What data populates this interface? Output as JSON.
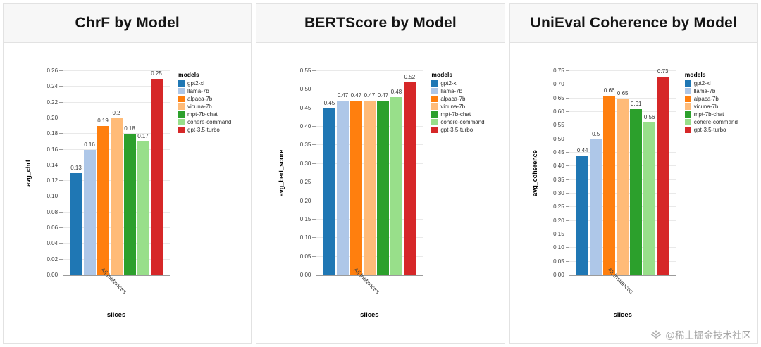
{
  "watermark": {
    "icon": "juejin-logo",
    "text": "@稀土掘金技术社区"
  },
  "chart_data": [
    {
      "type": "bar",
      "title": "ChrF by Model",
      "xlabel": "slices",
      "ylabel": "avg_chrf",
      "x_tick_label": "All Instances",
      "ylim": [
        0,
        0.26
      ],
      "ytick_step": 0.02,
      "legend_title": "models",
      "legend_position": "right",
      "grid": true,
      "categories": [
        "gpt2-xl",
        "llama-7b",
        "alpaca-7b",
        "vicuna-7b",
        "mpt-7b-chat",
        "cohere-command",
        "gpt-3.5-turbo"
      ],
      "values": [
        0.13,
        0.16,
        0.19,
        0.2,
        0.18,
        0.17,
        0.25
      ],
      "value_labels": [
        "0.13",
        "0.16",
        "0.19",
        "0.2",
        "0.18",
        "0.17",
        "0.25"
      ],
      "colors": [
        "#1f77b4",
        "#aec7e8",
        "#ff7f0e",
        "#ffbb78",
        "#2ca02c",
        "#98df8a",
        "#d62728"
      ]
    },
    {
      "type": "bar",
      "title": "BERTScore by Model",
      "xlabel": "slices",
      "ylabel": "avg_bert_score",
      "x_tick_label": "All Instances",
      "ylim": [
        0,
        0.55
      ],
      "ytick_step": 0.05,
      "legend_title": "models",
      "legend_position": "right",
      "grid": true,
      "categories": [
        "gpt2-xl",
        "llama-7b",
        "alpaca-7b",
        "vicuna-7b",
        "mpt-7b-chat",
        "cohere-command",
        "gpt-3.5-turbo"
      ],
      "values": [
        0.45,
        0.47,
        0.47,
        0.47,
        0.47,
        0.48,
        0.52
      ],
      "value_labels": [
        "0.45",
        "0.47",
        "0.47",
        "0.47",
        "0.47",
        "0.48",
        "0.52"
      ],
      "colors": [
        "#1f77b4",
        "#aec7e8",
        "#ff7f0e",
        "#ffbb78",
        "#2ca02c",
        "#98df8a",
        "#d62728"
      ]
    },
    {
      "type": "bar",
      "title": "UniEval Coherence by Model",
      "xlabel": "slices",
      "ylabel": "avg_coherence",
      "x_tick_label": "All Instances",
      "ylim": [
        0,
        0.75
      ],
      "ytick_step": 0.05,
      "legend_title": "models",
      "legend_position": "right",
      "grid": true,
      "categories": [
        "gpt2-xl",
        "llama-7b",
        "alpaca-7b",
        "vicuna-7b",
        "mpt-7b-chat",
        "cohere-command",
        "gpt-3.5-turbo"
      ],
      "values": [
        0.44,
        0.5,
        0.66,
        0.65,
        0.61,
        0.56,
        0.73
      ],
      "value_labels": [
        "0.44",
        "0.5",
        "0.66",
        "0.65",
        "0.61",
        "0.56",
        "0.73"
      ],
      "colors": [
        "#1f77b4",
        "#aec7e8",
        "#ff7f0e",
        "#ffbb78",
        "#2ca02c",
        "#98df8a",
        "#d62728"
      ]
    }
  ]
}
